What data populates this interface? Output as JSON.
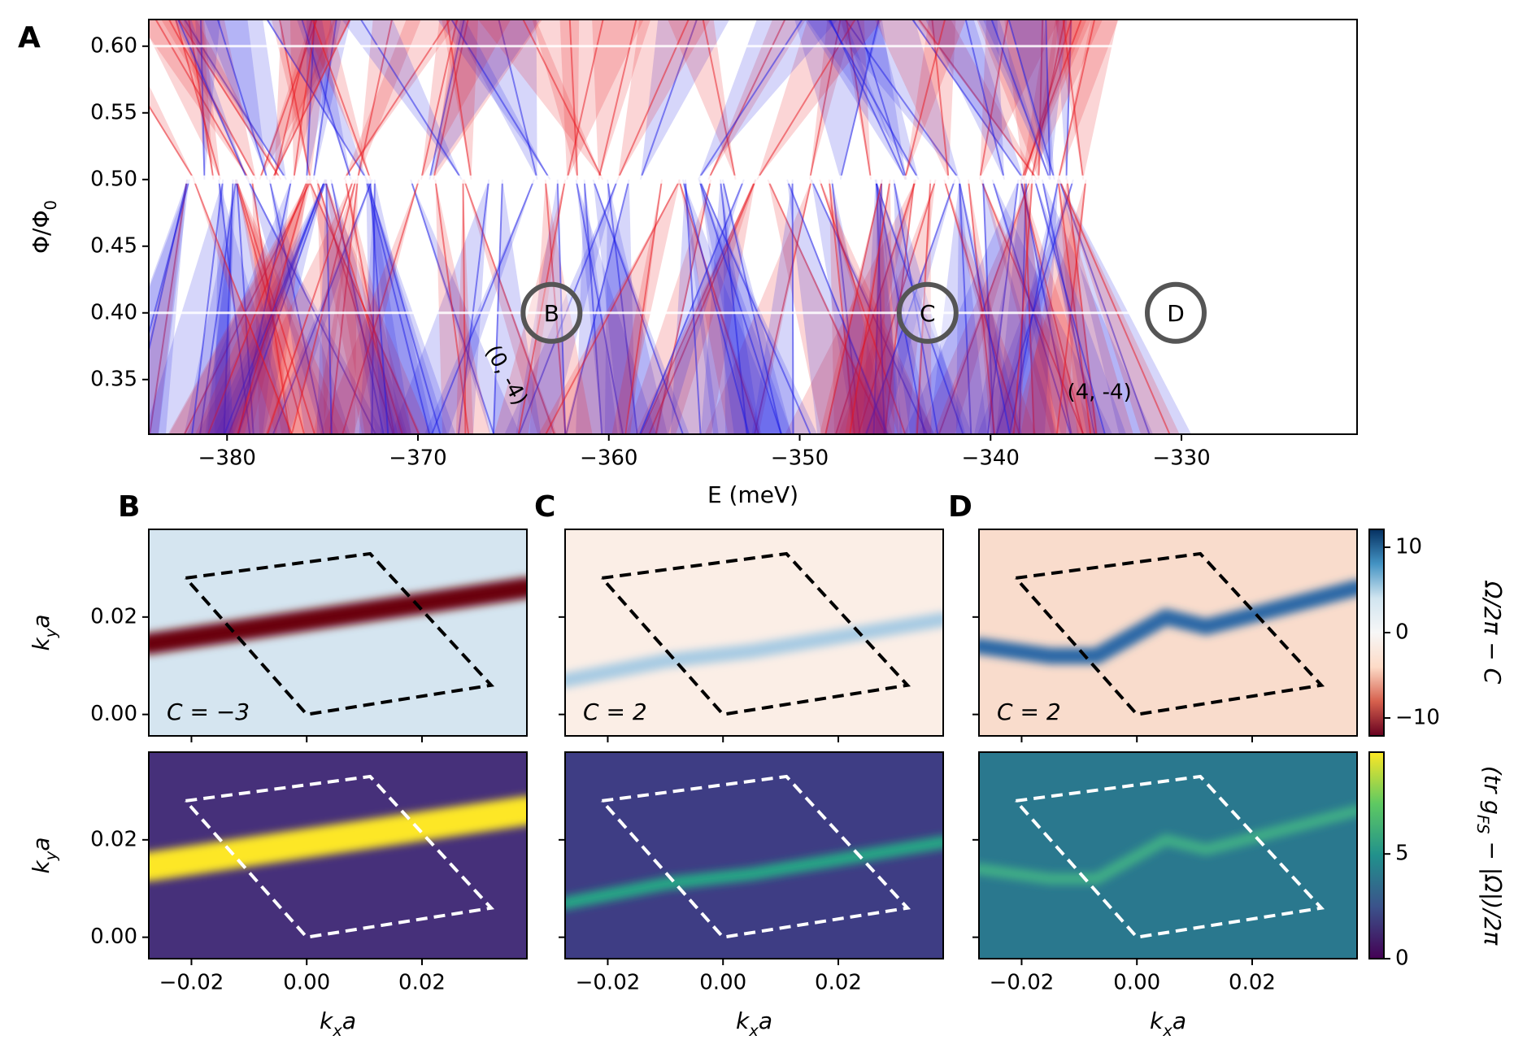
{
  "chart_data": [
    {
      "type": "scatter",
      "title": "A",
      "xlabel": "E (meV)",
      "ylabel": "Φ/Φ_0",
      "xlim": [
        -384.1,
        -320.8
      ],
      "ylim": [
        0.309,
        0.62
      ],
      "xticks": [
        {
          "value": -380,
          "label": "−380"
        },
        {
          "value": -370,
          "label": "−370"
        },
        {
          "value": -360,
          "label": "−360"
        },
        {
          "value": -350,
          "label": "−350"
        },
        {
          "value": -340,
          "label": "−340"
        },
        {
          "value": -330,
          "label": "−330"
        }
      ],
      "yticks": [
        0.35,
        {
          "value": 0.4,
          "label": "0.40"
        },
        0.45,
        {
          "value": 0.5,
          "label": "0.50"
        },
        0.55,
        {
          "value": 0.6,
          "label": "0.60"
        }
      ],
      "colors": [
        "#e8141c",
        "#1a1ae6"
      ],
      "markers": [
        {
          "label": "B",
          "x": -363.0,
          "y": 0.4
        },
        {
          "label": "C",
          "x": -343.3,
          "y": 0.4
        },
        {
          "label": "D",
          "x": -330.3,
          "y": 0.4
        }
      ],
      "annotations": [
        {
          "text": "(0, -4)",
          "x": -365.4,
          "y": 0.353
        },
        {
          "text": "(4, -4)",
          "x": -334.3,
          "y": 0.34
        }
      ]
    },
    {
      "type": "heatmap",
      "title": "B",
      "annotation": "C = −3",
      "ylabel": "k_ya",
      "xlim": [
        -0.0274,
        0.0382
      ],
      "ylim": [
        -0.0044,
        0.038
      ],
      "xticks": [
        {
          "value": -0.02,
          "label": "−0.02"
        },
        {
          "value": 0,
          "label": "0.00"
        },
        {
          "value": 0.02,
          "label": "0.02"
        }
      ],
      "yticks": [
        {
          "value": 0,
          "label": "0.00"
        },
        {
          "value": 0.02,
          "label": "0.02"
        }
      ],
      "background": "#d5e5f0",
      "ridge_color": "#6a000f",
      "boundary_color": "#000000",
      "ridge": {
        "x": [
          -0.0274,
          0.0382
        ],
        "y": [
          0.0145,
          0.026
        ]
      },
      "boundary": {
        "x": [
          -0.021,
          0.011,
          0.032,
          0,
          -0.021
        ],
        "y": [
          0.028,
          0.033,
          0.006,
          0,
          0.028
        ]
      }
    },
    {
      "type": "heatmap",
      "title": "C",
      "annotation": "C = 2",
      "xlim": [
        -0.0274,
        0.0382
      ],
      "ylim": [
        -0.0044,
        0.038
      ],
      "xticks": [
        {
          "value": -0.02,
          "label": "−0.02"
        },
        {
          "value": 0,
          "label": "0.00"
        },
        {
          "value": 0.02,
          "label": "0.02"
        }
      ],
      "yticks": [
        {
          "value": 0,
          "label": "0.00"
        },
        {
          "value": 0.02,
          "label": "0.02"
        }
      ],
      "background": "#fbeee6",
      "ridge_color": "#a7cbe3",
      "boundary_color": "#000000",
      "ridge": {
        "x": [
          -0.0274,
          -0.01,
          0.005,
          0.0382
        ],
        "y": [
          0.007,
          0.011,
          0.013,
          0.0195
        ]
      },
      "boundary": {
        "x": [
          -0.021,
          0.011,
          0.032,
          0,
          -0.021
        ],
        "y": [
          0.028,
          0.033,
          0.006,
          0,
          0.028
        ]
      }
    },
    {
      "type": "heatmap",
      "title": "D",
      "annotation": "C = 2",
      "xlim": [
        -0.0274,
        0.0382
      ],
      "ylim": [
        -0.0044,
        0.038
      ],
      "xticks": [
        {
          "value": -0.02,
          "label": "−0.02"
        },
        {
          "value": 0,
          "label": "0.00"
        },
        {
          "value": 0.02,
          "label": "0.02"
        }
      ],
      "yticks": [
        {
          "value": 0,
          "label": "0.00"
        },
        {
          "value": 0.02,
          "label": "0.02"
        }
      ],
      "background": "#f9dccc",
      "ridge_color": "#2a68a6",
      "boundary_color": "#000000",
      "ridge": {
        "x": [
          -0.0274,
          -0.015,
          -0.007,
          0.005,
          0.012,
          0.022,
          0.0382
        ],
        "y": [
          0.014,
          0.012,
          0.012,
          0.02,
          0.018,
          0.021,
          0.026
        ]
      },
      "boundary": {
        "x": [
          -0.021,
          0.011,
          0.032,
          0,
          -0.021
        ],
        "y": [
          0.028,
          0.033,
          0.006,
          0,
          0.028
        ]
      }
    },
    {
      "type": "heatmap",
      "xlabel": "k_xa",
      "ylabel": "k_ya",
      "xlim": [
        -0.0274,
        0.0382
      ],
      "ylim": [
        -0.0044,
        0.038
      ],
      "xticks": [
        {
          "value": -0.02,
          "label": "−0.02"
        },
        {
          "value": 0,
          "label": "0.00"
        },
        {
          "value": 0.02,
          "label": "0.02"
        }
      ],
      "yticks": [
        {
          "value": 0,
          "label": "0.00"
        },
        {
          "value": 0.02,
          "label": "0.02"
        }
      ],
      "background": "#46307a",
      "ridge_color": "#fde725",
      "boundary_color": "#ffffff",
      "ridge": {
        "x": [
          -0.0274,
          0.0382
        ],
        "y": [
          0.0145,
          0.026
        ]
      },
      "boundary": {
        "x": [
          -0.021,
          0.011,
          0.032,
          0,
          -0.021
        ],
        "y": [
          0.028,
          0.033,
          0.006,
          0,
          0.028
        ]
      }
    },
    {
      "type": "heatmap",
      "xlabel": "k_xa",
      "xlim": [
        -0.0274,
        0.0382
      ],
      "ylim": [
        -0.0044,
        0.038
      ],
      "xticks": [
        {
          "value": -0.02,
          "label": "−0.02"
        },
        {
          "value": 0,
          "label": "0.00"
        },
        {
          "value": 0.02,
          "label": "0.02"
        }
      ],
      "yticks": [
        {
          "value": 0,
          "label": "0.00"
        },
        {
          "value": 0.02,
          "label": "0.02"
        }
      ],
      "background": "#3e3d84",
      "ridge_color": "#25a885",
      "boundary_color": "#ffffff",
      "ridge": {
        "x": [
          -0.0274,
          -0.01,
          0.005,
          0.0382
        ],
        "y": [
          0.007,
          0.011,
          0.013,
          0.0195
        ]
      },
      "boundary": {
        "x": [
          -0.021,
          0.011,
          0.032,
          0,
          -0.021
        ],
        "y": [
          0.028,
          0.033,
          0.006,
          0,
          0.028
        ]
      }
    },
    {
      "type": "heatmap",
      "xlabel": "k_xa",
      "xlim": [
        -0.0274,
        0.0382
      ],
      "ylim": [
        -0.0044,
        0.038
      ],
      "xticks": [
        {
          "value": -0.02,
          "label": "−0.02"
        },
        {
          "value": 0,
          "label": "0.00"
        },
        {
          "value": 0.02,
          "label": "0.02"
        }
      ],
      "yticks": [
        {
          "value": 0,
          "label": "0.00"
        },
        {
          "value": 0.02,
          "label": "0.02"
        }
      ],
      "background": "#2a788e",
      "ridge_color": "#3fae86",
      "boundary_color": "#ffffff",
      "ridge": {
        "x": [
          -0.0274,
          -0.015,
          -0.007,
          0.005,
          0.012,
          0.022,
          0.0382
        ],
        "y": [
          0.014,
          0.012,
          0.012,
          0.02,
          0.018,
          0.021,
          0.026
        ]
      },
      "boundary": {
        "x": [
          -0.021,
          0.011,
          0.032,
          0,
          -0.021
        ],
        "y": [
          0.028,
          0.033,
          0.006,
          0,
          0.028
        ]
      }
    },
    {
      "type": "colorbar",
      "label": "Ω/2π − C",
      "lim": [
        -12.1,
        12.1
      ],
      "ticks": [
        {
          "value": -10,
          "label": "−10"
        },
        0,
        10
      ],
      "colors": [
        "#67001f",
        "#d6604d",
        "#fddbc7",
        "#f7f7f7",
        "#d1e5f0",
        "#4393c3",
        "#053061"
      ]
    },
    {
      "type": "colorbar",
      "label": "(tr g_{FS} − |Ω|)/2π",
      "lim": [
        0,
        9.86
      ],
      "ticks": [
        0,
        5
      ],
      "colors": [
        "#440154",
        "#3b528b",
        "#21918c",
        "#5ec962",
        "#fde725"
      ]
    }
  ]
}
